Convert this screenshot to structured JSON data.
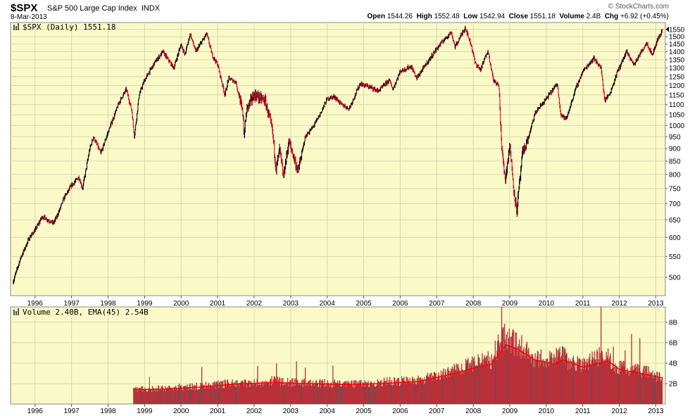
{
  "header": {
    "symbol": "$SPX",
    "name": "S&P 500 Large Cap Index",
    "exchange": "INDX",
    "date": "8-Mar-2013",
    "brand": "© StockCharts.com",
    "quote": {
      "open_label": "Open",
      "open": "1544.26",
      "high_label": "High",
      "high": "1552.48",
      "low_label": "Low",
      "low": "1542.94",
      "close_label": "Close",
      "close": "1551.18",
      "volume_label": "Volume",
      "volume": "2.4B",
      "chg_label": "Chg",
      "chg": "+6.92 (+0.45%)"
    }
  },
  "price_panel": {
    "legend": "$SPX (Daily) 1551.18"
  },
  "volume_panel": {
    "legend": "Volume 2.40B, EMA(45) 2.54B"
  },
  "colors": {
    "panel_bg": "#fafac8",
    "price_line": "#000000",
    "price_down": "#cc0022",
    "volume_bar": "#b8303a",
    "volume_dark": "#555555",
    "ema_line": "#ff0000",
    "grid": "#d8d8b0"
  },
  "chart_data": [
    {
      "type": "line",
      "scale": "log",
      "x_axis_ticks": [
        "1996",
        "1997",
        "1998",
        "1999",
        "2000",
        "2001",
        "2002",
        "2003",
        "2004",
        "2005",
        "2006",
        "2007",
        "2008",
        "2009",
        "2010",
        "2011",
        "2012",
        "2013"
      ],
      "y_ticks": [
        500,
        550,
        600,
        650,
        700,
        750,
        800,
        850,
        900,
        950,
        1000,
        1050,
        1100,
        1150,
        1200,
        1250,
        1300,
        1350,
        1400,
        1450,
        1500,
        1550
      ],
      "ylim": [
        460,
        1600
      ],
      "series": [
        {
          "points": [
            [
              1995.4,
              490
            ],
            [
              1995.6,
              545
            ],
            [
              1995.85,
              600
            ],
            [
              1996.0,
              620
            ],
            [
              1996.2,
              660
            ],
            [
              1996.5,
              640
            ],
            [
              1996.6,
              660
            ],
            [
              1996.8,
              720
            ],
            [
              1997.0,
              760
            ],
            [
              1997.2,
              790
            ],
            [
              1997.3,
              750
            ],
            [
              1997.5,
              900
            ],
            [
              1997.6,
              950
            ],
            [
              1997.8,
              880
            ],
            [
              1998.0,
              970
            ],
            [
              1998.3,
              1110
            ],
            [
              1998.5,
              1180
            ],
            [
              1998.65,
              1070
            ],
            [
              1998.72,
              950
            ],
            [
              1998.85,
              1150
            ],
            [
              1999.0,
              1230
            ],
            [
              1999.3,
              1340
            ],
            [
              1999.5,
              1400
            ],
            [
              1999.8,
              1300
            ],
            [
              2000.0,
              1450
            ],
            [
              2000.1,
              1380
            ],
            [
              2000.25,
              1520
            ],
            [
              2000.4,
              1400
            ],
            [
              2000.7,
              1520
            ],
            [
              2000.85,
              1380
            ],
            [
              2001.0,
              1320
            ],
            [
              2001.2,
              1150
            ],
            [
              2001.3,
              1240
            ],
            [
              2001.5,
              1220
            ],
            [
              2001.7,
              1050
            ],
            [
              2001.72,
              950
            ],
            [
              2001.8,
              1080
            ],
            [
              2002.0,
              1150
            ],
            [
              2002.3,
              1120
            ],
            [
              2002.5,
              980
            ],
            [
              2002.6,
              820
            ],
            [
              2002.7,
              900
            ],
            [
              2002.8,
              790
            ],
            [
              2002.95,
              930
            ],
            [
              2003.1,
              860
            ],
            [
              2003.2,
              810
            ],
            [
              2003.4,
              950
            ],
            [
              2003.6,
              990
            ],
            [
              2003.8,
              1050
            ],
            [
              2004.0,
              1130
            ],
            [
              2004.2,
              1140
            ],
            [
              2004.4,
              1100
            ],
            [
              2004.6,
              1080
            ],
            [
              2004.9,
              1210
            ],
            [
              2005.2,
              1190
            ],
            [
              2005.4,
              1170
            ],
            [
              2005.7,
              1230
            ],
            [
              2005.8,
              1180
            ],
            [
              2006.0,
              1280
            ],
            [
              2006.3,
              1310
            ],
            [
              2006.45,
              1240
            ],
            [
              2006.7,
              1320
            ],
            [
              2007.0,
              1420
            ],
            [
              2007.2,
              1480
            ],
            [
              2007.4,
              1530
            ],
            [
              2007.5,
              1430
            ],
            [
              2007.78,
              1565
            ],
            [
              2007.95,
              1440
            ],
            [
              2008.05,
              1330
            ],
            [
              2008.2,
              1290
            ],
            [
              2008.4,
              1410
            ],
            [
              2008.55,
              1230
            ],
            [
              2008.7,
              1200
            ],
            [
              2008.78,
              900
            ],
            [
              2008.88,
              780
            ],
            [
              2009.0,
              920
            ],
            [
              2009.1,
              760
            ],
            [
              2009.19,
              676
            ],
            [
              2009.35,
              880
            ],
            [
              2009.5,
              940
            ],
            [
              2009.7,
              1060
            ],
            [
              2010.0,
              1130
            ],
            [
              2010.3,
              1210
            ],
            [
              2010.4,
              1050
            ],
            [
              2010.55,
              1030
            ],
            [
              2010.8,
              1180
            ],
            [
              2011.0,
              1280
            ],
            [
              2011.3,
              1360
            ],
            [
              2011.5,
              1300
            ],
            [
              2011.6,
              1120
            ],
            [
              2011.75,
              1160
            ],
            [
              2011.95,
              1280
            ],
            [
              2012.2,
              1400
            ],
            [
              2012.4,
              1320
            ],
            [
              2012.6,
              1400
            ],
            [
              2012.75,
              1460
            ],
            [
              2012.9,
              1380
            ],
            [
              2013.05,
              1480
            ],
            [
              2013.19,
              1551
            ]
          ]
        }
      ]
    },
    {
      "type": "bar",
      "x_axis_ticks": [
        "1996",
        "1997",
        "1998",
        "1999",
        "2000",
        "2001",
        "2002",
        "2003",
        "2004",
        "2005",
        "2006",
        "2007",
        "2008",
        "2009",
        "2010",
        "2011",
        "2012",
        "2013"
      ],
      "y_ticks": [
        "2B",
        "4B",
        "6B",
        "8B"
      ],
      "ylim": [
        0,
        9.5
      ],
      "series": [
        {
          "name": "Volume",
          "points": [
            [
              1998.7,
              1.5
            ],
            [
              1999.0,
              1.4
            ],
            [
              1999.5,
              1.5
            ],
            [
              2000.0,
              1.6
            ],
            [
              2000.5,
              1.7
            ],
            [
              2001.0,
              1.9
            ],
            [
              2001.5,
              2.0
            ],
            [
              2002.0,
              2.0
            ],
            [
              2002.5,
              2.2
            ],
            [
              2003.0,
              2.1
            ],
            [
              2003.5,
              2.0
            ],
            [
              2004.0,
              2.0
            ],
            [
              2004.5,
              1.9
            ],
            [
              2005.0,
              1.9
            ],
            [
              2005.5,
              2.1
            ],
            [
              2006.0,
              2.2
            ],
            [
              2006.5,
              2.3
            ],
            [
              2007.0,
              2.6
            ],
            [
              2007.5,
              3.3
            ],
            [
              2008.0,
              3.8
            ],
            [
              2008.5,
              4.2
            ],
            [
              2008.8,
              6.5
            ],
            [
              2009.0,
              6.0
            ],
            [
              2009.3,
              5.5
            ],
            [
              2009.6,
              4.5
            ],
            [
              2010.0,
              4.2
            ],
            [
              2010.4,
              5.0
            ],
            [
              2010.6,
              4.0
            ],
            [
              2011.0,
              3.8
            ],
            [
              2011.6,
              4.8
            ],
            [
              2011.9,
              3.5
            ],
            [
              2012.3,
              3.3
            ],
            [
              2012.7,
              3.1
            ],
            [
              2013.19,
              2.4
            ]
          ]
        },
        {
          "name": "EMA(45)",
          "points": [
            [
              1998.7,
              1.4
            ],
            [
              1999.5,
              1.45
            ],
            [
              2000.5,
              1.65
            ],
            [
              2001.5,
              1.95
            ],
            [
              2002.5,
              2.1
            ],
            [
              2003.5,
              2.0
            ],
            [
              2004.5,
              1.9
            ],
            [
              2005.5,
              2.0
            ],
            [
              2006.5,
              2.2
            ],
            [
              2007.5,
              3.0
            ],
            [
              2008.0,
              3.5
            ],
            [
              2008.5,
              3.9
            ],
            [
              2008.9,
              5.8
            ],
            [
              2009.2,
              5.4
            ],
            [
              2009.7,
              4.3
            ],
            [
              2010.2,
              3.9
            ],
            [
              2010.5,
              4.3
            ],
            [
              2011.0,
              3.6
            ],
            [
              2011.7,
              4.2
            ],
            [
              2012.0,
              3.4
            ],
            [
              2012.7,
              2.9
            ],
            [
              2013.19,
              2.54
            ]
          ]
        }
      ]
    }
  ]
}
